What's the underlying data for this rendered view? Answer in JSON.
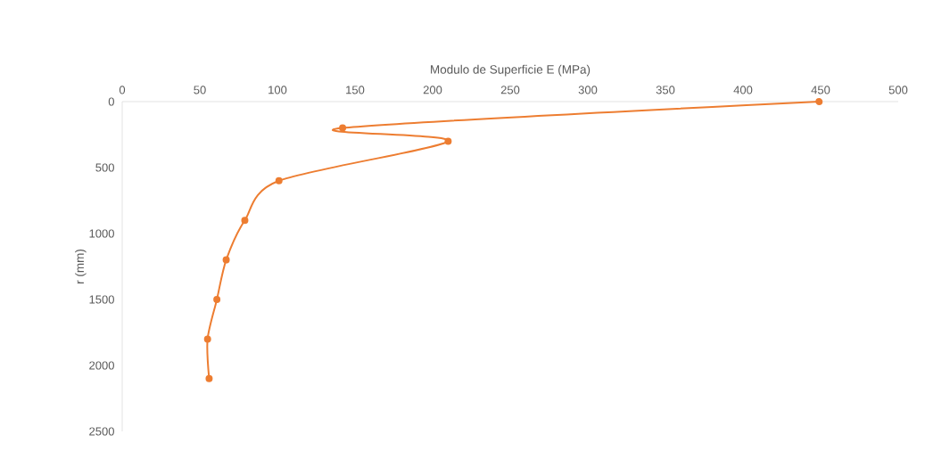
{
  "chart_data": {
    "type": "line",
    "xlabel": "Modulo de Superficie E (MPa)",
    "ylabel": "r (mm)",
    "x": [
      449,
      142,
      210,
      101,
      79,
      67,
      61,
      55,
      56
    ],
    "series": [
      {
        "color": "#ed7d31",
        "values": [
          0,
          200,
          300,
          600,
          900,
          1200,
          1500,
          1800,
          2100
        ]
      }
    ],
    "xlim": [
      0,
      500
    ],
    "xticks": [
      0,
      50,
      100,
      150,
      200,
      250,
      300,
      350,
      400,
      450,
      500
    ],
    "ylim": [
      2500,
      0
    ],
    "yticks": [
      0,
      500,
      1000,
      1500,
      2000,
      2500
    ],
    "marker": "circle",
    "line_style": "solid"
  }
}
